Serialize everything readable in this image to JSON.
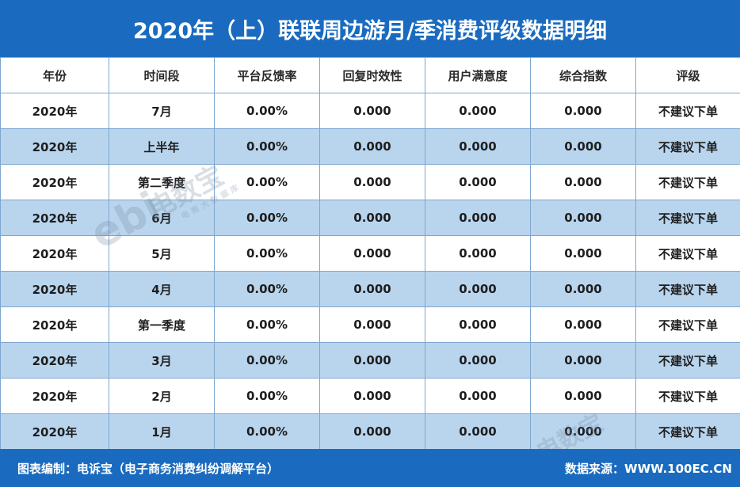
{
  "title": "2020年（上）联联周边游月/季消费评级数据明细",
  "table": {
    "headers": [
      "年份",
      "时间段",
      "平台反馈率",
      "回复时效性",
      "用户满意度",
      "综合指数",
      "评级"
    ],
    "rows": [
      [
        "2020年",
        "7月",
        "0.00%",
        "0.000",
        "0.000",
        "0.000",
        "不建议下单"
      ],
      [
        "2020年",
        "上半年",
        "0.00%",
        "0.000",
        "0.000",
        "0.000",
        "不建议下单"
      ],
      [
        "2020年",
        "第二季度",
        "0.00%",
        "0.000",
        "0.000",
        "0.000",
        "不建议下单"
      ],
      [
        "2020年",
        "6月",
        "0.00%",
        "0.000",
        "0.000",
        "0.000",
        "不建议下单"
      ],
      [
        "2020年",
        "5月",
        "0.00%",
        "0.000",
        "0.000",
        "0.000",
        "不建议下单"
      ],
      [
        "2020年",
        "4月",
        "0.00%",
        "0.000",
        "0.000",
        "0.000",
        "不建议下单"
      ],
      [
        "2020年",
        "第一季度",
        "0.00%",
        "0.000",
        "0.000",
        "0.000",
        "不建议下单"
      ],
      [
        "2020年",
        "3月",
        "0.00%",
        "0.000",
        "0.000",
        "0.000",
        "不建议下单"
      ],
      [
        "2020年",
        "2月",
        "0.00%",
        "0.000",
        "0.000",
        "0.000",
        "不建议下单"
      ],
      [
        "2020年",
        "1月",
        "0.00%",
        "0.000",
        "0.000",
        "0.000",
        "不建议下单"
      ]
    ]
  },
  "footer": {
    "left": "图表编制：电诉宝（电子商务消费纠纷调解平台）",
    "right": "数据来源：WWW.100EC.CN"
  },
  "watermark": {
    "logo": "ebi",
    "name": "电数宝",
    "sub": "电商大数据库"
  },
  "colors": {
    "header_bar": "#1a6bbf",
    "alt_row": "#b9d5ee",
    "border": "#7ea6cf"
  }
}
